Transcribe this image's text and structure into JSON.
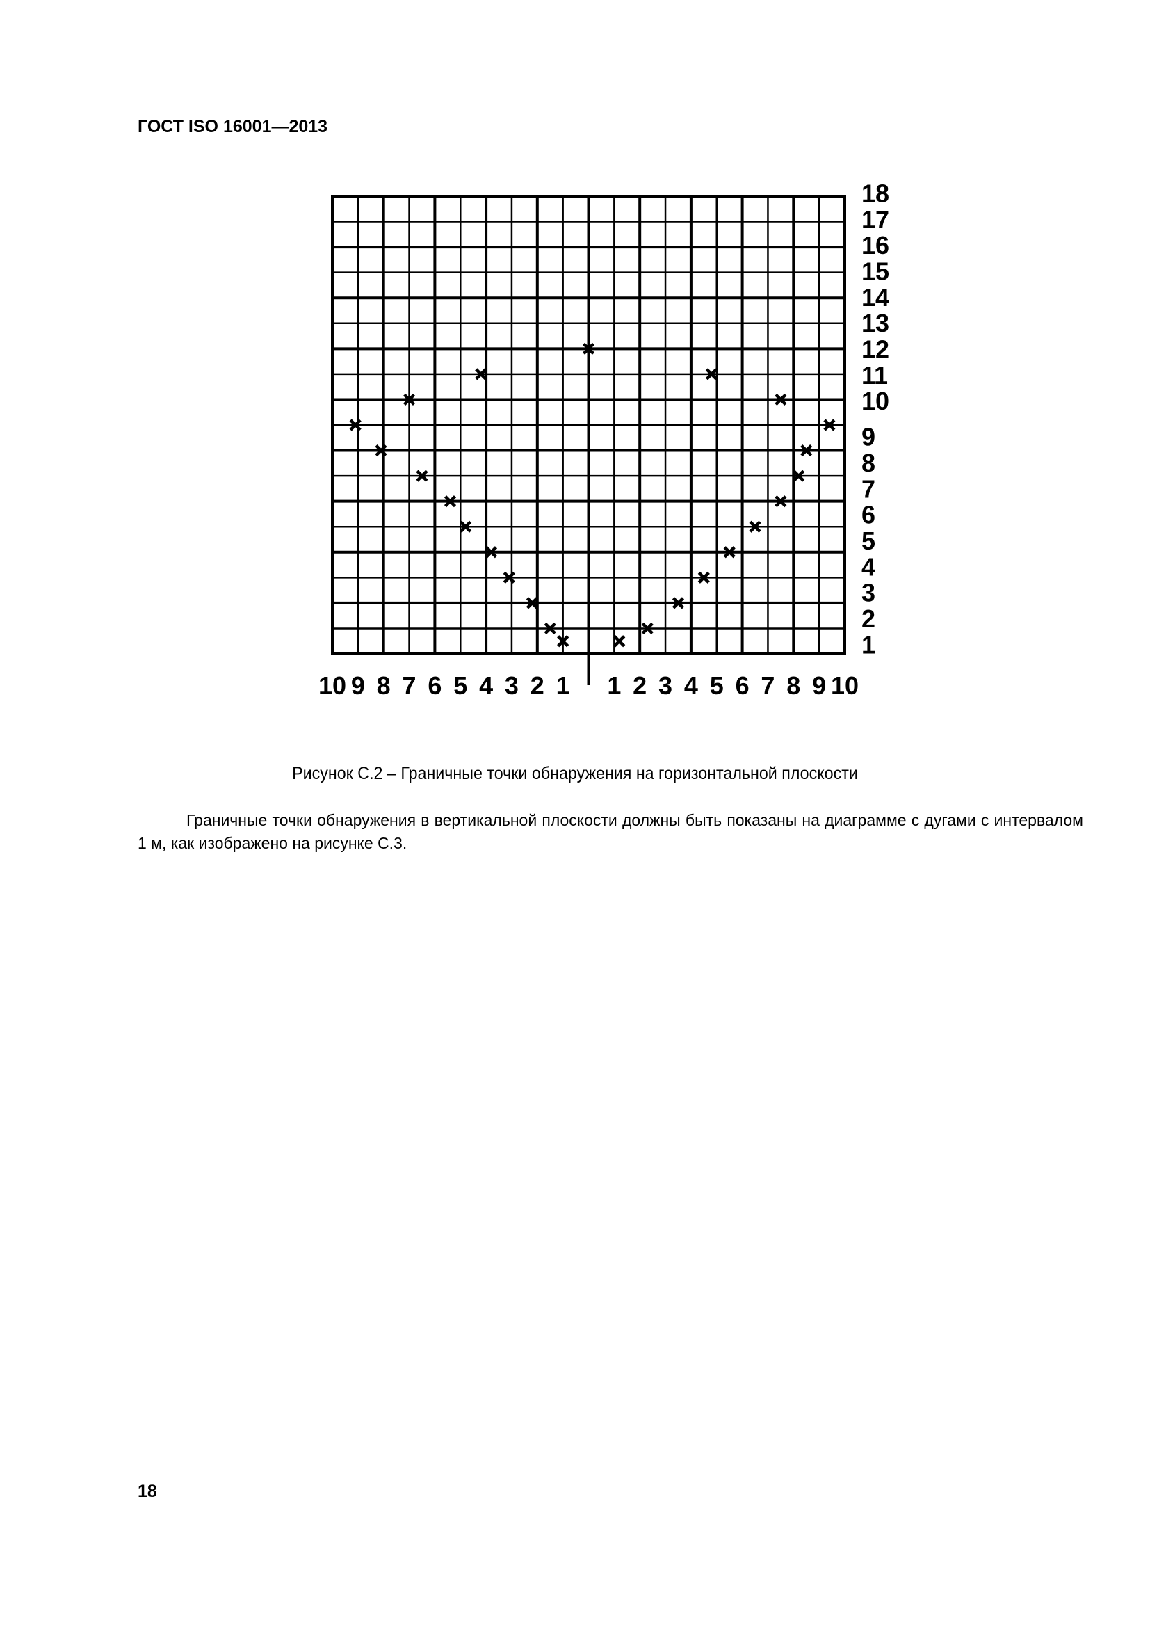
{
  "header": {
    "doc_id": "ГОСТ ISO 16001—2013"
  },
  "figure": {
    "caption": "Рисунок С.2 – Граничные точки  обнаружения на горизонтальной плоскости"
  },
  "body": {
    "paragraph": "Граничные точки обнаружения в вертикальной плоскости должны быть показаны на диаграмме с дугами с интервалом 1 м, как изображено на рисунке С.3."
  },
  "footer": {
    "page_number": "18"
  },
  "chart_data": {
    "type": "scatter",
    "marker": "x",
    "grid": true,
    "xlim": [
      -10,
      10
    ],
    "ylim": [
      0,
      18
    ],
    "x_tick_labels": [
      "10",
      "9",
      "8",
      "7",
      "6",
      "5",
      "4",
      "3",
      "2",
      "1",
      "",
      "1",
      "2",
      "3",
      "4",
      "5",
      "6",
      "7",
      "8",
      "9",
      "10"
    ],
    "x_tick_values": [
      -10,
      -9,
      -8,
      -7,
      -6,
      -5,
      -4,
      -3,
      -2,
      -1,
      0,
      1,
      2,
      3,
      4,
      5,
      6,
      7,
      8,
      9,
      10
    ],
    "y_tick_labels": [
      "1",
      "2",
      "3",
      "4",
      "5",
      "6",
      "7",
      "8",
      "9",
      "10",
      "11",
      "12",
      "13",
      "14",
      "15",
      "16",
      "17",
      "18"
    ],
    "points": [
      {
        "x": -9.1,
        "y": 9
      },
      {
        "x": -8.1,
        "y": 8
      },
      {
        "x": -7.0,
        "y": 10
      },
      {
        "x": -6.5,
        "y": 7
      },
      {
        "x": -5.4,
        "y": 6
      },
      {
        "x": -4.8,
        "y": 5
      },
      {
        "x": -4.2,
        "y": 11
      },
      {
        "x": -3.8,
        "y": 4
      },
      {
        "x": -3.1,
        "y": 3
      },
      {
        "x": -2.2,
        "y": 2
      },
      {
        "x": -1.5,
        "y": 1
      },
      {
        "x": -1.0,
        "y": 0.5
      },
      {
        "x": 0.0,
        "y": 12
      },
      {
        "x": 1.2,
        "y": 0.5
      },
      {
        "x": 2.3,
        "y": 1
      },
      {
        "x": 3.5,
        "y": 2
      },
      {
        "x": 4.5,
        "y": 3
      },
      {
        "x": 4.8,
        "y": 11
      },
      {
        "x": 5.5,
        "y": 4
      },
      {
        "x": 6.5,
        "y": 5
      },
      {
        "x": 7.5,
        "y": 10
      },
      {
        "x": 7.5,
        "y": 6
      },
      {
        "x": 8.2,
        "y": 7
      },
      {
        "x": 8.5,
        "y": 8
      },
      {
        "x": 9.4,
        "y": 9
      }
    ]
  }
}
